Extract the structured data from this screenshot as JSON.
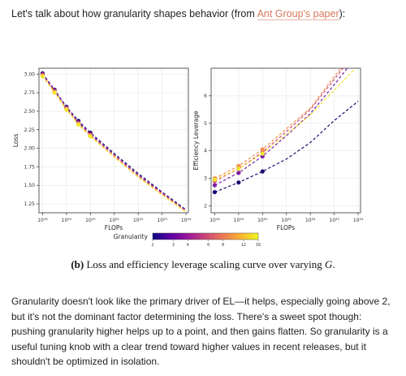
{
  "intro": {
    "text_before": "Let's talk about how granularity shapes behavior (from ",
    "link_text": "Ant Group's paper",
    "text_after": "):"
  },
  "caption": {
    "label": "(b)",
    "text": " Loss and efficiency leverage scaling curve over varying ",
    "var": "G",
    "end": "."
  },
  "body": {
    "paragraph": "Granularity doesn't look like the primary driver of EL—it helps, especially going above 2, but it's not the dominant factor determining the loss. There's a sweet spot though: pushing granularity higher helps up to a point, and then gains flatten. So granularity is a useful tuning knob with a clear trend toward higher values in recent releases, but it shouldn't be optimized in isolation."
  },
  "chart_data": [
    {
      "type": "line",
      "title": "",
      "xlabel": "FLOPs",
      "ylabel": "Loss",
      "x_scale": "log",
      "x_ticks": [
        "10¹⁸",
        "10¹⁹",
        "10²⁰",
        "10²¹",
        "10²²",
        "10²³",
        "10²⁴"
      ],
      "x_tick_exponents": [
        18,
        19,
        20,
        21,
        22,
        23,
        24
      ],
      "xlim_exponent": [
        17.85,
        24.1
      ],
      "y_ticks": [
        "1.25",
        "1.50",
        "1.75",
        "2.00",
        "2.25",
        "2.50",
        "2.75",
        "3.00"
      ],
      "ylim": [
        1.13,
        3.08
      ],
      "grid": true,
      "series": [
        {
          "granularity": 2,
          "color": "#1b0c72",
          "x": [
            18,
            18.5,
            19,
            19.5,
            20,
            21,
            22,
            23,
            24
          ],
          "y": [
            3.01,
            2.79,
            2.56,
            2.37,
            2.21,
            1.93,
            1.66,
            1.41,
            1.17
          ]
        },
        {
          "granularity": 4,
          "color": "#7b1fa2",
          "x": [
            18,
            18.5,
            19,
            19.5,
            20,
            21,
            22,
            23,
            24
          ],
          "y": [
            3.0,
            2.78,
            2.55,
            2.35,
            2.19,
            1.91,
            1.64,
            1.4,
            1.16
          ]
        },
        {
          "granularity": 8,
          "color": "#d4457a",
          "x": [
            18,
            18.5,
            19,
            19.5,
            20,
            21,
            22,
            23,
            24
          ],
          "y": [
            2.99,
            2.77,
            2.54,
            2.34,
            2.18,
            1.9,
            1.63,
            1.39,
            1.15
          ]
        },
        {
          "granularity": 12,
          "color": "#f0904a",
          "x": [
            18,
            18.5,
            19,
            19.5,
            20,
            21,
            22,
            23,
            24
          ],
          "y": [
            2.98,
            2.76,
            2.53,
            2.33,
            2.17,
            1.89,
            1.62,
            1.38,
            1.15
          ]
        },
        {
          "granularity": 16,
          "color": "#f2e62f",
          "x": [
            18,
            18.5,
            19,
            19.5,
            20,
            21,
            22,
            23,
            24
          ],
          "y": [
            2.97,
            2.75,
            2.52,
            2.32,
            2.16,
            1.88,
            1.61,
            1.37,
            1.14
          ]
        }
      ]
    },
    {
      "type": "line",
      "title": "",
      "xlabel": "FLOPs",
      "ylabel": "Efficiency Leverage",
      "x_scale": "log",
      "x_ticks": [
        "10¹⁸",
        "10¹⁹",
        "10²⁰",
        "10²¹",
        "10²²",
        "10²³",
        "10²⁴"
      ],
      "x_tick_exponents": [
        18,
        19,
        20,
        21,
        22,
        23,
        24
      ],
      "xlim_exponent": [
        17.85,
        24.1
      ],
      "y_ticks": [
        "2",
        "3",
        "4",
        "5",
        "6"
      ],
      "ylim": [
        1.75,
        7.0
      ],
      "grid": true,
      "series": [
        {
          "granularity": 2,
          "color": "#1b0c72",
          "x": [
            18,
            19,
            20,
            21,
            22,
            23,
            24
          ],
          "y": [
            2.5,
            2.85,
            3.25,
            3.7,
            4.3,
            5.1,
            5.8
          ]
        },
        {
          "granularity": 4,
          "color": "#7b1fa2",
          "x": [
            18,
            19,
            20,
            21,
            22,
            23,
            24
          ],
          "y": [
            2.75,
            3.2,
            3.8,
            4.55,
            5.35,
            6.4,
            7.5
          ]
        },
        {
          "granularity": 8,
          "color": "#d4457a",
          "x": [
            18,
            19,
            20,
            21,
            22,
            23,
            24
          ],
          "y": [
            2.9,
            3.35,
            3.95,
            4.7,
            5.5,
            6.6,
            7.7
          ]
        },
        {
          "granularity": 12,
          "color": "#f0904a",
          "x": [
            18,
            19,
            20,
            21,
            22,
            23,
            24
          ],
          "y": [
            3.0,
            3.45,
            4.05,
            4.8,
            5.55,
            6.7,
            7.8
          ]
        },
        {
          "granularity": 16,
          "color": "#f2e62f",
          "x": [
            18,
            19,
            20,
            21,
            22,
            23,
            24
          ],
          "y": [
            2.95,
            3.35,
            3.9,
            4.6,
            5.3,
            6.2,
            7.1
          ]
        }
      ],
      "markers_upto_exponent": 20
    }
  ],
  "colorbar": {
    "label": "Granularity",
    "ticks": [
      "2",
      "3",
      "4",
      "6",
      "8",
      "12",
      "16"
    ],
    "tick_values": [
      2,
      3,
      4,
      6,
      8,
      12,
      16
    ],
    "range": [
      2,
      16
    ],
    "colors": [
      "#0d0887",
      "#5b02a3",
      "#9a179b",
      "#cb4678",
      "#eb7852",
      "#fbb32f",
      "#f0f921"
    ]
  }
}
